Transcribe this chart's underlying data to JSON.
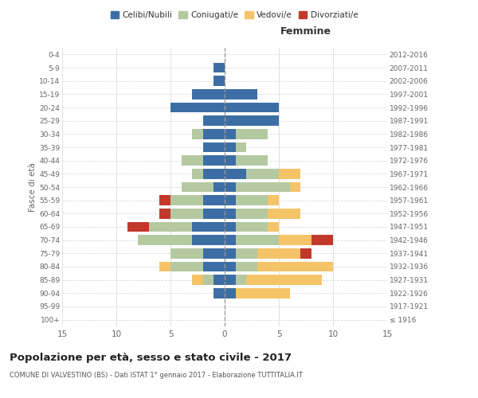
{
  "age_groups": [
    "100+",
    "95-99",
    "90-94",
    "85-89",
    "80-84",
    "75-79",
    "70-74",
    "65-69",
    "60-64",
    "55-59",
    "50-54",
    "45-49",
    "40-44",
    "35-39",
    "30-34",
    "25-29",
    "20-24",
    "15-19",
    "10-14",
    "5-9",
    "0-4"
  ],
  "birth_years": [
    "≤ 1916",
    "1917-1921",
    "1922-1926",
    "1927-1931",
    "1932-1936",
    "1937-1941",
    "1942-1946",
    "1947-1951",
    "1952-1956",
    "1957-1961",
    "1962-1966",
    "1967-1971",
    "1972-1976",
    "1977-1981",
    "1982-1986",
    "1987-1991",
    "1992-1996",
    "1997-2001",
    "2002-2006",
    "2007-2011",
    "2012-2016"
  ],
  "males": {
    "celibe": [
      0,
      0,
      1,
      1,
      2,
      2,
      3,
      3,
      2,
      2,
      1,
      2,
      2,
      2,
      2,
      2,
      5,
      3,
      1,
      1,
      0
    ],
    "coniugato": [
      0,
      0,
      0,
      1,
      3,
      3,
      5,
      4,
      3,
      3,
      3,
      1,
      2,
      0,
      1,
      0,
      0,
      0,
      0,
      0,
      0
    ],
    "vedovo": [
      0,
      0,
      0,
      1,
      1,
      0,
      0,
      0,
      0,
      0,
      0,
      0,
      0,
      0,
      0,
      0,
      0,
      0,
      0,
      0,
      0
    ],
    "divorziato": [
      0,
      0,
      0,
      0,
      0,
      0,
      0,
      2,
      1,
      1,
      0,
      0,
      0,
      0,
      0,
      0,
      0,
      0,
      0,
      0,
      0
    ]
  },
  "females": {
    "nubile": [
      0,
      0,
      1,
      1,
      1,
      1,
      1,
      1,
      1,
      1,
      1,
      2,
      1,
      1,
      1,
      5,
      5,
      3,
      0,
      0,
      0
    ],
    "coniugata": [
      0,
      0,
      0,
      1,
      2,
      2,
      4,
      3,
      3,
      3,
      5,
      3,
      3,
      1,
      3,
      0,
      0,
      0,
      0,
      0,
      0
    ],
    "vedova": [
      0,
      0,
      5,
      7,
      7,
      4,
      3,
      1,
      3,
      1,
      1,
      2,
      0,
      0,
      0,
      0,
      0,
      0,
      0,
      0,
      0
    ],
    "divorziata": [
      0,
      0,
      0,
      0,
      0,
      1,
      2,
      0,
      0,
      0,
      0,
      0,
      0,
      0,
      0,
      0,
      0,
      0,
      0,
      0,
      0
    ]
  },
  "colors": {
    "celibe": "#3c6ea5",
    "coniugato": "#b5c9a1",
    "vedovo": "#f5c469",
    "divorziato": "#c0392b"
  },
  "xlim": 15,
  "title": "Popolazione per età, sesso e stato civile - 2017",
  "subtitle": "COMUNE DI VALVESTINO (BS) - Dati ISTAT 1° gennaio 2017 - Elaborazione TUTTITALIA.IT",
  "ylabel_left": "Fasce di età",
  "xlabel_right": "Femmine",
  "legend_labels": [
    "Celibi/Nubili",
    "Coniugati/e",
    "Vedovi/e",
    "Divorziati/e"
  ],
  "background_color": "#ffffff",
  "grid_color": "#dddddd"
}
